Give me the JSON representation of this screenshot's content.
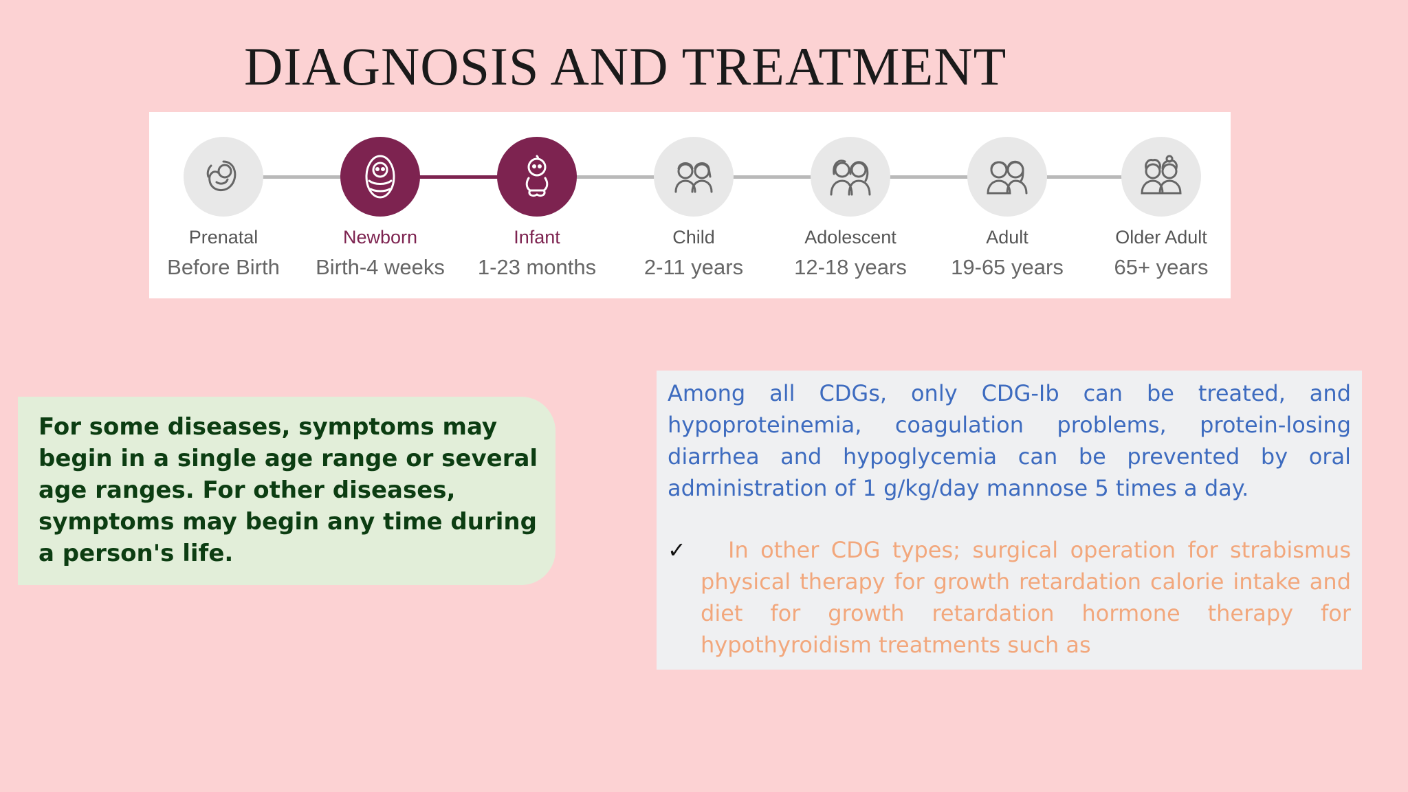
{
  "title": "DIAGNOSIS AND TREATMENT",
  "colors": {
    "accent": "#7d2350",
    "inactive_circle": "#e8e8e8",
    "connector": "#b9b9b9"
  },
  "timeline": [
    {
      "name": "Prenatal",
      "range": "Before Birth",
      "icon": "fetus-icon",
      "active": false
    },
    {
      "name": "Newborn",
      "range": "Birth-4 weeks",
      "icon": "swaddled-baby-icon",
      "active": true
    },
    {
      "name": "Infant",
      "range": "1-23 months",
      "icon": "infant-icon",
      "active": true
    },
    {
      "name": "Child",
      "range": "2-11 years",
      "icon": "children-icon",
      "active": false
    },
    {
      "name": "Adolescent",
      "range": "12-18 years",
      "icon": "adolescents-icon",
      "active": false
    },
    {
      "name": "Adult",
      "range": "19-65 years",
      "icon": "adults-icon",
      "active": false
    },
    {
      "name": "Older Adult",
      "range": "65+ years",
      "icon": "older-adults-icon",
      "active": false
    }
  ],
  "left_note": "For some diseases, symptoms may begin in a single age range or several age ranges. For other diseases, symptoms may begin any time during a person's life.",
  "treatment": {
    "paragraph": "Among all CDGs, only CDG-Ib can be treated, and hypoproteinemia, coagulation problems, protein-losing diarrhea and hypoglycemia can be prevented by oral administration of 1 g/kg/day mannose 5 times a day.",
    "bullet_mark": "✓",
    "bullet": "In other CDG types; surgical operation for strabismus physical therapy for growth retardation calorie intake and diet for growth retardation hormone therapy for hypothyroidism treatments such as"
  }
}
